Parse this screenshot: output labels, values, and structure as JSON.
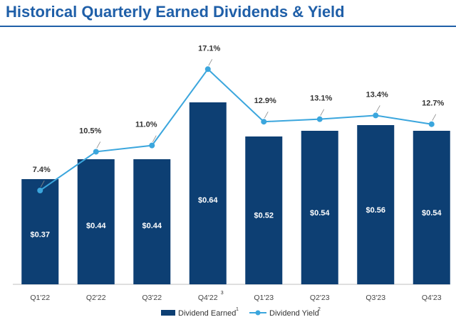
{
  "title": "Historical Quarterly Earned Dividends & Yield",
  "colors": {
    "title": "#1f5fa8",
    "bar": "#0d3f73",
    "line": "#3ba6dd",
    "leader": "#888888"
  },
  "chart_data": {
    "type": "bar",
    "categories": [
      "Q1'22",
      "Q2'22",
      "Q3'22",
      "Q4'22",
      "Q1'23",
      "Q2'23",
      "Q3'23",
      "Q4'23"
    ],
    "category_superscripts": [
      "",
      "",
      "",
      "3",
      "",
      "",
      "",
      ""
    ],
    "series": [
      {
        "name": "Dividend Earned",
        "superscript": "1",
        "type": "bar",
        "values": [
          0.37,
          0.44,
          0.44,
          0.64,
          0.52,
          0.54,
          0.56,
          0.54
        ],
        "labels": [
          "$0.37",
          "$0.44",
          "$0.44",
          "$0.64",
          "$0.52",
          "$0.54",
          "$0.56",
          "$0.54"
        ],
        "color": "#0d3f73"
      },
      {
        "name": "Dividend Yield",
        "superscript": "2",
        "type": "line",
        "values": [
          7.4,
          10.5,
          11.0,
          17.1,
          12.9,
          13.1,
          13.4,
          12.7
        ],
        "labels": [
          "7.4%",
          "10.5%",
          "11.0%",
          "17.1%",
          "12.9%",
          "13.1%",
          "13.4%",
          "12.7%"
        ],
        "color": "#3ba6dd"
      }
    ],
    "legend_position": "bottom-center",
    "grid": false
  }
}
